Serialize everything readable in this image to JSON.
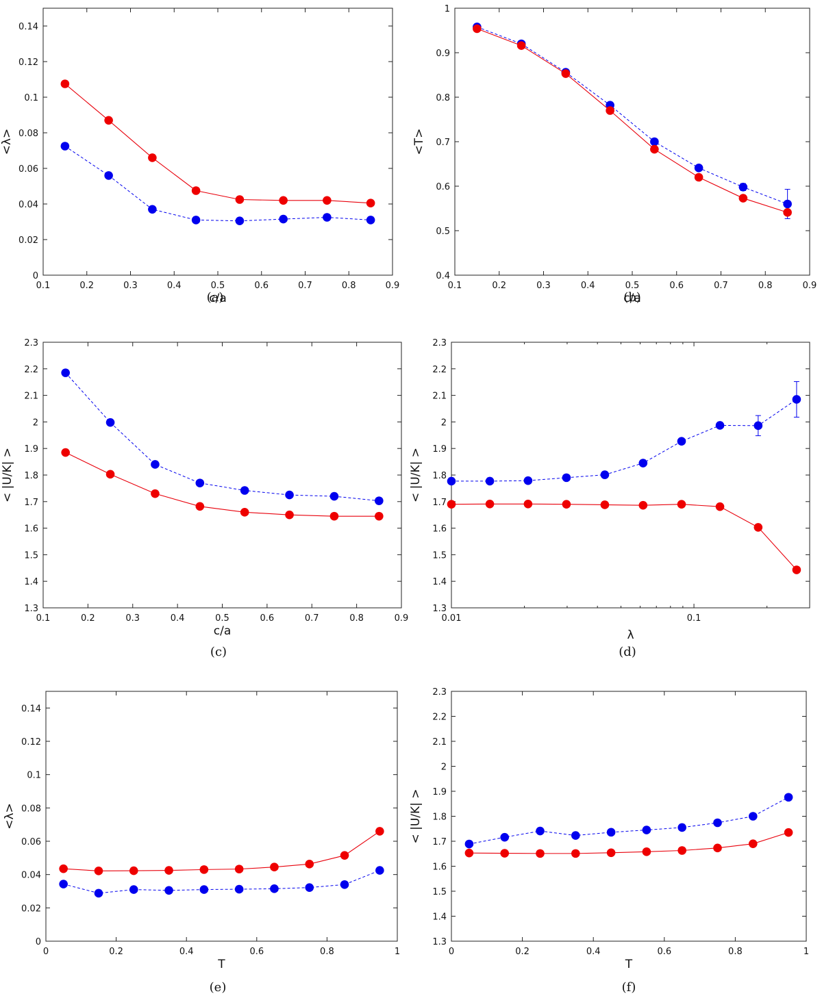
{
  "colors": {
    "series_a": "#ee0000",
    "series_b": "#0000ee"
  },
  "chart_data": [
    {
      "panel": "a",
      "caption": "(a)",
      "type": "line",
      "xlabel": "c/a",
      "ylabel": "<λ>",
      "xlim": [
        0.1,
        0.9
      ],
      "ylim": [
        0,
        0.15
      ],
      "xscale": "linear",
      "xticks": [
        0.1,
        0.2,
        0.3,
        0.4,
        0.5,
        0.6,
        0.7,
        0.8,
        0.9
      ],
      "xtick_labels": [
        "0.1",
        "0.2",
        "0.3",
        "0.4",
        "0.5",
        "0.6",
        "0.7",
        "0.8",
        "0.9"
      ],
      "yticks": [
        0,
        0.02,
        0.04,
        0.06,
        0.08,
        0.1,
        0.12,
        0.14
      ],
      "ytick_labels": [
        "0",
        "0.02",
        "0.04",
        "0.06",
        "0.08",
        "0.1",
        "0.12",
        "0.14"
      ],
      "x": [
        0.15,
        0.25,
        0.35,
        0.45,
        0.55,
        0.65,
        0.75,
        0.85
      ],
      "series": [
        {
          "name": "red",
          "color": "#ee0000",
          "style": "solid",
          "values": [
            0.1075,
            0.087,
            0.066,
            0.0475,
            0.0425,
            0.042,
            0.042,
            0.0405
          ]
        },
        {
          "name": "blue",
          "color": "#0000ee",
          "style": "dashed",
          "values": [
            0.0725,
            0.056,
            0.037,
            0.031,
            0.0305,
            0.0315,
            0.0325,
            0.031
          ]
        }
      ]
    },
    {
      "panel": "b",
      "caption": "(b)",
      "type": "line",
      "xlabel": "c/a",
      "ylabel": "<T>",
      "xlim": [
        0.1,
        0.9
      ],
      "ylim": [
        0.4,
        1.0
      ],
      "xscale": "linear",
      "xticks": [
        0.1,
        0.2,
        0.3,
        0.4,
        0.5,
        0.6,
        0.7,
        0.8,
        0.9
      ],
      "xtick_labels": [
        "0.1",
        "0.2",
        "0.3",
        "0.4",
        "0.5",
        "0.6",
        "0.7",
        "0.8",
        "0.9"
      ],
      "yticks": [
        0.4,
        0.5,
        0.6,
        0.7,
        0.8,
        0.9,
        1.0
      ],
      "ytick_labels": [
        "0.4",
        "0.5",
        "0.6",
        "0.7",
        "0.8",
        "0.9",
        "1"
      ],
      "x": [
        0.15,
        0.25,
        0.35,
        0.45,
        0.55,
        0.65,
        0.75,
        0.85
      ],
      "series": [
        {
          "name": "red",
          "color": "#ee0000",
          "style": "solid",
          "values": [
            0.954,
            0.916,
            0.853,
            0.77,
            0.683,
            0.62,
            0.573,
            0.541
          ]
        },
        {
          "name": "blue",
          "color": "#0000ee",
          "style": "dashed",
          "values": [
            0.958,
            0.92,
            0.856,
            0.782,
            0.7,
            0.641,
            0.598,
            0.56
          ],
          "errors": [
            0,
            0,
            0,
            0,
            0,
            0,
            0.008,
            0.033
          ]
        }
      ]
    },
    {
      "panel": "c",
      "caption": "(c)",
      "type": "line",
      "xlabel": "c/a",
      "ylabel": "< |U/K| >",
      "xlim": [
        0.1,
        0.9
      ],
      "ylim": [
        1.3,
        2.3
      ],
      "xscale": "linear",
      "xticks": [
        0.1,
        0.2,
        0.3,
        0.4,
        0.5,
        0.6,
        0.7,
        0.8,
        0.9
      ],
      "xtick_labels": [
        "0.1",
        "0.2",
        "0.3",
        "0.4",
        "0.5",
        "0.6",
        "0.7",
        "0.8",
        "0.9"
      ],
      "yticks": [
        1.3,
        1.4,
        1.5,
        1.6,
        1.7,
        1.8,
        1.9,
        2.0,
        2.1,
        2.2,
        2.3
      ],
      "ytick_labels": [
        "1.3",
        "1.4",
        "1.5",
        "1.6",
        "1.7",
        "1.8",
        "1.9",
        "2",
        "2.1",
        "2.2",
        "2.3"
      ],
      "x": [
        0.15,
        0.25,
        0.35,
        0.45,
        0.55,
        0.65,
        0.75,
        0.85
      ],
      "series": [
        {
          "name": "red",
          "color": "#ee0000",
          "style": "solid",
          "values": [
            1.885,
            1.803,
            1.73,
            1.682,
            1.66,
            1.65,
            1.645,
            1.645
          ]
        },
        {
          "name": "blue",
          "color": "#0000ee",
          "style": "dashed",
          "values": [
            2.185,
            1.998,
            1.84,
            1.77,
            1.742,
            1.725,
            1.72,
            1.703
          ]
        }
      ]
    },
    {
      "panel": "d",
      "caption": "(d)",
      "type": "line",
      "xlabel": "λ",
      "ylabel": "< |U/K| >",
      "xlim": [
        0.01,
        0.3
      ],
      "ylim": [
        1.3,
        2.3
      ],
      "xscale": "log",
      "xticks": [
        0.01,
        0.1
      ],
      "xtick_labels": [
        "0.01",
        "0.1"
      ],
      "yticks": [
        1.3,
        1.4,
        1.5,
        1.6,
        1.7,
        1.8,
        1.9,
        2.0,
        2.1,
        2.2,
        2.3
      ],
      "ytick_labels": [
        "1.3",
        "1.4",
        "1.5",
        "1.6",
        "1.7",
        "1.8",
        "1.9",
        "2",
        "2.1",
        "2.2",
        "2.3"
      ],
      "x": [
        0.01,
        0.0144,
        0.0207,
        0.0298,
        0.0429,
        0.0617,
        0.0889,
        0.128,
        0.184,
        0.265
      ],
      "series": [
        {
          "name": "red",
          "color": "#ee0000",
          "style": "solid",
          "values": [
            1.69,
            1.691,
            1.691,
            1.69,
            1.688,
            1.686,
            1.69,
            1.681,
            1.603,
            1.443
          ]
        },
        {
          "name": "blue",
          "color": "#0000ee",
          "style": "dashed",
          "values": [
            1.777,
            1.777,
            1.779,
            1.79,
            1.801,
            1.845,
            1.927,
            1.987,
            1.986,
            2.085
          ],
          "errors": [
            0,
            0,
            0,
            0,
            0,
            0,
            0,
            0,
            0.038,
            0.067
          ]
        }
      ]
    },
    {
      "panel": "e",
      "caption": "(e)",
      "type": "line",
      "xlabel": "T",
      "ylabel": "<λ>",
      "xlim": [
        0,
        1
      ],
      "ylim": [
        0,
        0.15
      ],
      "xscale": "linear",
      "xticks": [
        0,
        0.2,
        0.4,
        0.6,
        0.8,
        1.0
      ],
      "xtick_labels": [
        "0",
        "0.2",
        "0.4",
        "0.6",
        "0.8",
        "1"
      ],
      "yticks": [
        0,
        0.02,
        0.04,
        0.06,
        0.08,
        0.1,
        0.12,
        0.14
      ],
      "ytick_labels": [
        "0",
        "0.02",
        "0.04",
        "0.06",
        "0.08",
        "0.1",
        "0.12",
        "0.14"
      ],
      "x": [
        0.05,
        0.15,
        0.25,
        0.35,
        0.45,
        0.55,
        0.65,
        0.75,
        0.85,
        0.95
      ],
      "series": [
        {
          "name": "red",
          "color": "#ee0000",
          "style": "solid",
          "values": [
            0.0435,
            0.0422,
            0.0423,
            0.0425,
            0.043,
            0.0433,
            0.0445,
            0.0463,
            0.0515,
            0.066
          ]
        },
        {
          "name": "blue",
          "color": "#0000ee",
          "style": "dashed",
          "values": [
            0.0343,
            0.0288,
            0.031,
            0.0305,
            0.031,
            0.0312,
            0.0315,
            0.0322,
            0.034,
            0.0425
          ]
        }
      ]
    },
    {
      "panel": "f",
      "caption": "(f)",
      "type": "line",
      "xlabel": "T",
      "ylabel": "< |U/K| >",
      "xlim": [
        0,
        1
      ],
      "ylim": [
        1.3,
        2.3
      ],
      "xscale": "linear",
      "xticks": [
        0,
        0.2,
        0.4,
        0.6,
        0.8,
        1.0
      ],
      "xtick_labels": [
        "0",
        "0.2",
        "0.4",
        "0.6",
        "0.8",
        "1"
      ],
      "yticks": [
        1.3,
        1.4,
        1.5,
        1.6,
        1.7,
        1.8,
        1.9,
        2.0,
        2.1,
        2.2,
        2.3
      ],
      "ytick_labels": [
        "1.3",
        "1.4",
        "1.5",
        "1.6",
        "1.7",
        "1.8",
        "1.9",
        "2",
        "2.1",
        "2.2",
        "2.3"
      ],
      "x": [
        0.05,
        0.15,
        0.25,
        0.35,
        0.45,
        0.55,
        0.65,
        0.75,
        0.85,
        0.95
      ],
      "series": [
        {
          "name": "red",
          "color": "#ee0000",
          "style": "solid",
          "values": [
            1.653,
            1.652,
            1.651,
            1.651,
            1.654,
            1.658,
            1.663,
            1.673,
            1.69,
            1.735
          ]
        },
        {
          "name": "blue",
          "color": "#0000ee",
          "style": "dashed",
          "values": [
            1.689,
            1.716,
            1.741,
            1.723,
            1.736,
            1.745,
            1.755,
            1.774,
            1.8,
            1.876
          ]
        }
      ]
    }
  ]
}
